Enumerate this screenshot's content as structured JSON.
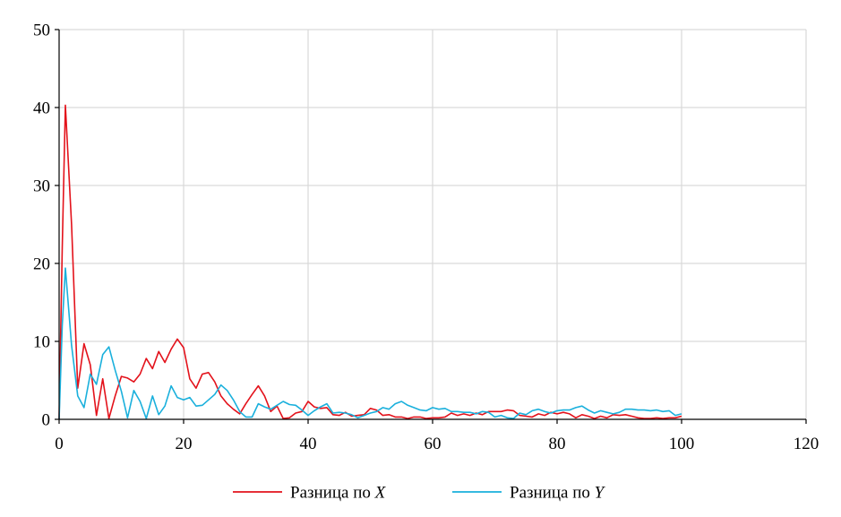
{
  "chart_data": {
    "type": "line",
    "title": "",
    "xlabel": "",
    "ylabel": "",
    "xlim": [
      0,
      120
    ],
    "ylim": [
      0,
      50
    ],
    "x_ticks": [
      0,
      20,
      40,
      60,
      80,
      100,
      120
    ],
    "y_ticks": [
      0,
      10,
      20,
      30,
      40,
      50
    ],
    "grid": true,
    "legend_position": "bottom-center",
    "series": [
      {
        "name": "Разница по X",
        "name_prefix": "Разница по ",
        "name_var": "X",
        "color": "#e3121b",
        "points": [
          [
            0,
            0
          ],
          [
            0.5,
            22
          ],
          [
            1,
            40.3
          ],
          [
            2,
            25
          ],
          [
            3,
            4
          ],
          [
            4,
            9.7
          ],
          [
            5,
            7
          ],
          [
            6,
            0.5
          ],
          [
            7,
            5.2
          ],
          [
            8,
            0.1
          ],
          [
            9,
            3
          ],
          [
            10,
            5.5
          ],
          [
            11,
            5.3
          ],
          [
            12,
            4.8
          ],
          [
            13,
            5.8
          ],
          [
            14,
            7.8
          ],
          [
            15,
            6.5
          ],
          [
            16,
            8.7
          ],
          [
            17,
            7.3
          ],
          [
            18,
            9
          ],
          [
            19,
            10.3
          ],
          [
            20,
            9.2
          ],
          [
            21,
            5.2
          ],
          [
            22,
            4
          ],
          [
            23,
            5.8
          ],
          [
            24,
            6
          ],
          [
            25,
            4.8
          ],
          [
            26,
            3
          ],
          [
            27,
            2
          ],
          [
            28,
            1.3
          ],
          [
            29,
            0.7
          ],
          [
            30,
            2
          ],
          [
            31,
            3.2
          ],
          [
            32,
            4.3
          ],
          [
            33,
            3
          ],
          [
            34,
            1
          ],
          [
            35,
            1.7
          ],
          [
            36,
            0.1
          ],
          [
            37,
            0.2
          ],
          [
            38,
            0.8
          ],
          [
            39,
            1
          ],
          [
            40,
            2.3
          ],
          [
            41,
            1.6
          ],
          [
            42,
            1.4
          ],
          [
            43,
            1.5
          ],
          [
            44,
            0.6
          ],
          [
            45,
            0.5
          ],
          [
            46,
            0.9
          ],
          [
            47,
            0.4
          ],
          [
            48,
            0.5
          ],
          [
            49,
            0.6
          ],
          [
            50,
            1.4
          ],
          [
            51,
            1.2
          ],
          [
            52,
            0.5
          ],
          [
            53,
            0.6
          ],
          [
            54,
            0.3
          ],
          [
            55,
            0.3
          ],
          [
            56,
            0.1
          ],
          [
            57,
            0.3
          ],
          [
            58,
            0.3
          ],
          [
            59,
            0.1
          ],
          [
            60,
            0.2
          ],
          [
            61,
            0.2
          ],
          [
            62,
            0.3
          ],
          [
            63,
            0.8
          ],
          [
            64,
            0.5
          ],
          [
            65,
            0.7
          ],
          [
            66,
            0.5
          ],
          [
            67,
            0.8
          ],
          [
            68,
            0.6
          ],
          [
            69,
            1
          ],
          [
            70,
            1
          ],
          [
            71,
            1
          ],
          [
            72,
            1.2
          ],
          [
            73,
            1.1
          ],
          [
            74,
            0.5
          ],
          [
            75,
            0.4
          ],
          [
            76,
            0.3
          ],
          [
            77,
            0.7
          ],
          [
            78,
            0.5
          ],
          [
            79,
            0.9
          ],
          [
            80,
            0.7
          ],
          [
            81,
            0.9
          ],
          [
            82,
            0.7
          ],
          [
            83,
            0.2
          ],
          [
            84,
            0.6
          ],
          [
            85,
            0.4
          ],
          [
            86,
            0.1
          ],
          [
            87,
            0.4
          ],
          [
            88,
            0.2
          ],
          [
            89,
            0.6
          ],
          [
            90,
            0.5
          ],
          [
            91,
            0.6
          ],
          [
            92,
            0.4
          ],
          [
            93,
            0.2
          ],
          [
            94,
            0.1
          ],
          [
            95,
            0.1
          ],
          [
            96,
            0.2
          ],
          [
            97,
            0.1
          ],
          [
            98,
            0.2
          ],
          [
            99,
            0.2
          ],
          [
            100,
            0.4
          ]
        ]
      },
      {
        "name": "Разница по Y",
        "name_prefix": "Разница по ",
        "name_var": "Y",
        "color": "#1ab0dc",
        "points": [
          [
            0,
            0
          ],
          [
            0.5,
            12
          ],
          [
            1,
            19.4
          ],
          [
            2,
            9.5
          ],
          [
            3,
            3
          ],
          [
            4,
            1.5
          ],
          [
            5,
            5.8
          ],
          [
            6,
            4.5
          ],
          [
            7,
            8.3
          ],
          [
            8,
            9.3
          ],
          [
            9,
            6.3
          ],
          [
            10,
            3.6
          ],
          [
            11,
            0.2
          ],
          [
            12,
            3.7
          ],
          [
            13,
            2.3
          ],
          [
            14,
            0.1
          ],
          [
            15,
            3
          ],
          [
            16,
            0.6
          ],
          [
            17,
            1.7
          ],
          [
            18,
            4.3
          ],
          [
            19,
            2.8
          ],
          [
            20,
            2.5
          ],
          [
            21,
            2.8
          ],
          [
            22,
            1.7
          ],
          [
            23,
            1.8
          ],
          [
            24,
            2.5
          ],
          [
            25,
            3.2
          ],
          [
            26,
            4.4
          ],
          [
            27,
            3.7
          ],
          [
            28,
            2.5
          ],
          [
            29,
            1
          ],
          [
            30,
            0.3
          ],
          [
            31,
            0.3
          ],
          [
            32,
            2
          ],
          [
            33,
            1.6
          ],
          [
            34,
            1.3
          ],
          [
            35,
            1.8
          ],
          [
            36,
            2.3
          ],
          [
            37,
            1.9
          ],
          [
            38,
            1.8
          ],
          [
            39,
            1.2
          ],
          [
            40,
            0.5
          ],
          [
            41,
            1.1
          ],
          [
            42,
            1.6
          ],
          [
            43,
            2
          ],
          [
            44,
            0.8
          ],
          [
            45,
            0.9
          ],
          [
            46,
            0.8
          ],
          [
            47,
            0.6
          ],
          [
            48,
            0.2
          ],
          [
            49,
            0.5
          ],
          [
            50,
            0.8
          ],
          [
            51,
            1
          ],
          [
            52,
            1.5
          ],
          [
            53,
            1.3
          ],
          [
            54,
            2
          ],
          [
            55,
            2.3
          ],
          [
            56,
            1.8
          ],
          [
            57,
            1.5
          ],
          [
            58,
            1.2
          ],
          [
            59,
            1.1
          ],
          [
            60,
            1.5
          ],
          [
            61,
            1.3
          ],
          [
            62,
            1.4
          ],
          [
            63,
            1
          ],
          [
            64,
            1
          ],
          [
            65,
            0.9
          ],
          [
            66,
            0.9
          ],
          [
            67,
            0.7
          ],
          [
            68,
            1
          ],
          [
            69,
            0.9
          ],
          [
            70,
            0.3
          ],
          [
            71,
            0.5
          ],
          [
            72,
            0.2
          ],
          [
            73,
            0.1
          ],
          [
            74,
            0.8
          ],
          [
            75,
            0.6
          ],
          [
            76,
            1.1
          ],
          [
            77,
            1.3
          ],
          [
            78,
            1
          ],
          [
            79,
            0.8
          ],
          [
            80,
            1.1
          ],
          [
            81,
            1.2
          ],
          [
            82,
            1.2
          ],
          [
            83,
            1.5
          ],
          [
            84,
            1.7
          ],
          [
            85,
            1.2
          ],
          [
            86,
            0.8
          ],
          [
            87,
            1.1
          ],
          [
            88,
            0.9
          ],
          [
            89,
            0.7
          ],
          [
            90,
            0.9
          ],
          [
            91,
            1.3
          ],
          [
            92,
            1.3
          ],
          [
            93,
            1.2
          ],
          [
            94,
            1.2
          ],
          [
            95,
            1.1
          ],
          [
            96,
            1.2
          ],
          [
            97,
            1
          ],
          [
            98,
            1.1
          ],
          [
            99,
            0.5
          ],
          [
            100,
            0.7
          ]
        ]
      }
    ],
    "colors": {
      "grid": "#d9d9d9",
      "axis": "#000000"
    }
  }
}
